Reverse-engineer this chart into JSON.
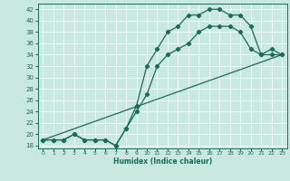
{
  "xlabel": "Humidex (Indice chaleur)",
  "bg_color": "#c8e8e0",
  "line_color": "#1a6b5a",
  "xlim": [
    -0.5,
    23.5
  ],
  "ylim": [
    17.5,
    43
  ],
  "yticks": [
    18,
    20,
    22,
    24,
    26,
    28,
    30,
    32,
    34,
    36,
    38,
    40,
    42
  ],
  "xticks": [
    0,
    1,
    2,
    3,
    4,
    5,
    6,
    7,
    8,
    9,
    10,
    11,
    12,
    13,
    14,
    15,
    16,
    17,
    18,
    19,
    20,
    21,
    22,
    23
  ],
  "line1_x": [
    0,
    1,
    2,
    3,
    4,
    5,
    6,
    7,
    8,
    9,
    10,
    11,
    12,
    13,
    14,
    15,
    16,
    17,
    18,
    19,
    20,
    21,
    22,
    23
  ],
  "line1_y": [
    19,
    19,
    19,
    20,
    19,
    19,
    19,
    18,
    21,
    25,
    32,
    35,
    38,
    39,
    41,
    41,
    42,
    42,
    41,
    41,
    39,
    34,
    35,
    34
  ],
  "line2_x": [
    0,
    1,
    2,
    3,
    4,
    5,
    6,
    7,
    8,
    9,
    10,
    11,
    12,
    13,
    14,
    15,
    16,
    17,
    18,
    19,
    20,
    21,
    22,
    23
  ],
  "line2_y": [
    19,
    19,
    19,
    20,
    19,
    19,
    19,
    18,
    21,
    24,
    27,
    32,
    34,
    35,
    36,
    38,
    39,
    39,
    39,
    38,
    35,
    34,
    34,
    34
  ],
  "line3_x": [
    0,
    23
  ],
  "line3_y": [
    19,
    34
  ],
  "marker": "D",
  "markersize": 2.2,
  "linewidth": 0.9
}
